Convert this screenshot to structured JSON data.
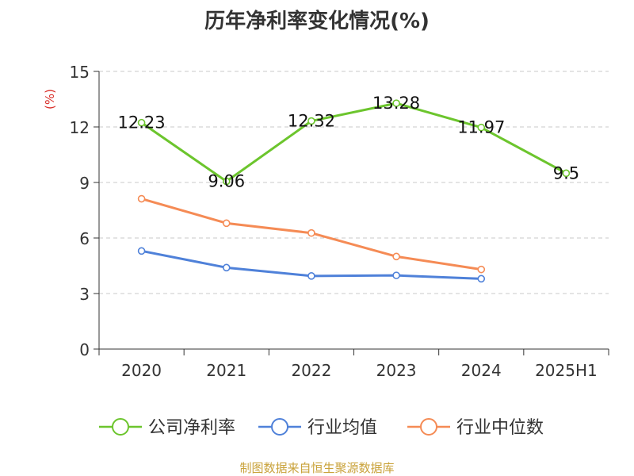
{
  "chart_data": {
    "type": "line",
    "title": "历年净利率变化情况(%)",
    "ylabel": "(%)",
    "xlabel": "",
    "categories": [
      "2020",
      "2021",
      "2022",
      "2023",
      "2024",
      "2025H1"
    ],
    "ylim": [
      0,
      15
    ],
    "yticks": [
      "0",
      "3",
      "6",
      "9",
      "12",
      "15"
    ],
    "grid": true,
    "legend_position": "bottom",
    "series": [
      {
        "name": "公司净利率",
        "color": "#6cc52d",
        "values": [
          12.23,
          9.06,
          12.32,
          13.28,
          11.97,
          9.5
        ],
        "data_labels": [
          "12.23",
          "9.06",
          "12.32",
          "13.28",
          "11.97",
          "9.5"
        ]
      },
      {
        "name": "行业均值",
        "color": "#4f81d9",
        "values": [
          5.3,
          4.4,
          3.95,
          3.98,
          3.8,
          null
        ]
      },
      {
        "name": "行业中位数",
        "color": "#f58b55",
        "values": [
          8.12,
          6.8,
          6.27,
          5.0,
          4.3,
          null
        ]
      }
    ]
  },
  "footer": {
    "source": "制图数据来自恒生聚源数据库"
  }
}
